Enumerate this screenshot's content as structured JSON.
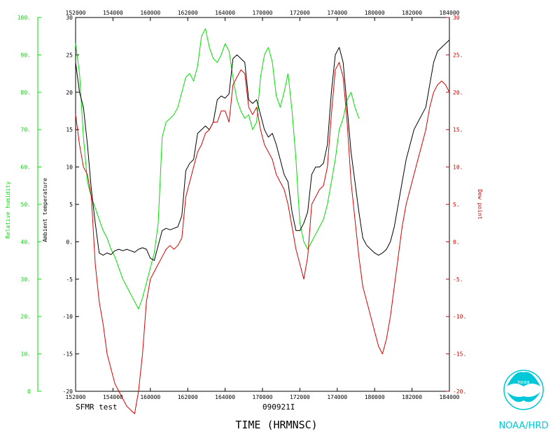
{
  "colors": {
    "humidity": "#00e000",
    "temperature": "#000000",
    "dewpoint": "#d80000",
    "logo": "#00c8d8",
    "frame": "#000000"
  },
  "labels": {
    "left_outer_axis": "Relative humidity",
    "left_inner_axis": "Ambient temperature",
    "right_axis": "Dew point",
    "footer_left": "SFMR test",
    "footer_center": "090921I",
    "x_title": "TIME (HRMNSC)",
    "logo_caption": "NOAA/HRD",
    "logo_badge": "noaa"
  },
  "chart_data": {
    "type": "line",
    "x_tick_labels": [
      "152000",
      "154000",
      "160000",
      "162000",
      "164000",
      "170000",
      "172000",
      "174000",
      "180000",
      "182000",
      "184000"
    ],
    "temperature_axis": {
      "range": [
        -20,
        30
      ],
      "ticks": [
        "30",
        "25",
        "20",
        "15",
        "10",
        "5",
        "0.",
        "-5",
        "-10",
        "-15",
        "-20"
      ]
    },
    "humidity_axis": {
      "range": [
        0,
        100
      ],
      "ticks": [
        "100.",
        "90.",
        "80.",
        "70.",
        "60.",
        "50.",
        "40.",
        "30.",
        "20.",
        "10.",
        "0"
      ]
    },
    "dewpoint_axis": {
      "range": [
        -20,
        30
      ],
      "ticks": [
        "30",
        "25.",
        "20.",
        "15.",
        "10.",
        "5.",
        "0.",
        "-5.",
        "-10.",
        "-15.",
        "-20."
      ]
    },
    "series": [
      {
        "name": "Relative humidity",
        "axis": "humidity",
        "points": [
          [
            0,
            93
          ],
          [
            1,
            85
          ],
          [
            2,
            68
          ],
          [
            3,
            56
          ],
          [
            4,
            52
          ],
          [
            5,
            49
          ],
          [
            6,
            46
          ],
          [
            7,
            43
          ],
          [
            8,
            41
          ],
          [
            9,
            38
          ],
          [
            10,
            36
          ],
          [
            11,
            33
          ],
          [
            12,
            30
          ],
          [
            13,
            28
          ],
          [
            14,
            26
          ],
          [
            15,
            24
          ],
          [
            16,
            22
          ],
          [
            17,
            25
          ],
          [
            18,
            29
          ],
          [
            19,
            33
          ],
          [
            20,
            37
          ],
          [
            21,
            45
          ],
          [
            22,
            68
          ],
          [
            23,
            72
          ],
          [
            24,
            73
          ],
          [
            25,
            74
          ],
          [
            26,
            76
          ],
          [
            27,
            80
          ],
          [
            28,
            84
          ],
          [
            29,
            85
          ],
          [
            30,
            83
          ],
          [
            31,
            87
          ],
          [
            32,
            95
          ],
          [
            33,
            97
          ],
          [
            34,
            92
          ],
          [
            35,
            89
          ],
          [
            36,
            88
          ],
          [
            37,
            90
          ],
          [
            38,
            93
          ],
          [
            39,
            91
          ],
          [
            40,
            84
          ],
          [
            41,
            78
          ],
          [
            42,
            75
          ],
          [
            43,
            73
          ],
          [
            44,
            74
          ],
          [
            45,
            70
          ],
          [
            46,
            72
          ],
          [
            47,
            84
          ],
          [
            48,
            90
          ],
          [
            49,
            92
          ],
          [
            50,
            88
          ],
          [
            51,
            79
          ],
          [
            52,
            76
          ],
          [
            53,
            80
          ],
          [
            54,
            85
          ],
          [
            55,
            75
          ],
          [
            56,
            62
          ],
          [
            57,
            45
          ],
          [
            58,
            40
          ],
          [
            59,
            38
          ],
          [
            60,
            40
          ],
          [
            61,
            42
          ],
          [
            62,
            44
          ],
          [
            63,
            46
          ],
          [
            64,
            50
          ],
          [
            65,
            56
          ],
          [
            66,
            62
          ],
          [
            67,
            70
          ],
          [
            68,
            73
          ],
          [
            69,
            78
          ],
          [
            70,
            80
          ],
          [
            71,
            76
          ],
          [
            72,
            73
          ]
        ]
      },
      {
        "name": "Ambient temperature",
        "axis": "temperature",
        "points": [
          [
            0,
            24
          ],
          [
            1,
            20
          ],
          [
            2,
            18
          ],
          [
            3,
            13
          ],
          [
            4,
            7
          ],
          [
            5,
            2.5
          ],
          [
            6,
            -1.5
          ],
          [
            7,
            -1.8
          ],
          [
            8,
            -1.5
          ],
          [
            9,
            -1.7
          ],
          [
            10,
            -1.2
          ],
          [
            11,
            -1.0
          ],
          [
            12,
            -1.2
          ],
          [
            13,
            -1.0
          ],
          [
            14,
            -1.2
          ],
          [
            15,
            -1.4
          ],
          [
            16,
            -1.0
          ],
          [
            17,
            -0.8
          ],
          [
            18,
            -1.0
          ],
          [
            19,
            -2.2
          ],
          [
            20,
            -2.5
          ],
          [
            21,
            -0.5
          ],
          [
            22,
            1.5
          ],
          [
            23,
            1.8
          ],
          [
            24,
            1.6
          ],
          [
            25,
            1.8
          ],
          [
            26,
            2.0
          ],
          [
            27,
            3.5
          ],
          [
            28,
            9.5
          ],
          [
            29,
            10.5
          ],
          [
            30,
            11
          ],
          [
            31,
            14.5
          ],
          [
            32,
            15
          ],
          [
            33,
            15.5
          ],
          [
            34,
            15
          ],
          [
            35,
            16
          ],
          [
            36,
            19
          ],
          [
            37,
            19.5
          ],
          [
            38,
            19.2
          ],
          [
            39,
            19.8
          ],
          [
            40,
            24.5
          ],
          [
            41,
            25
          ],
          [
            42,
            24.5
          ],
          [
            43,
            24
          ],
          [
            44,
            19
          ],
          [
            45,
            18.5
          ],
          [
            46,
            19
          ],
          [
            47,
            17
          ],
          [
            48,
            15
          ],
          [
            49,
            14
          ],
          [
            50,
            14.5
          ],
          [
            51,
            13
          ],
          [
            52,
            11
          ],
          [
            53,
            9
          ],
          [
            54,
            8
          ],
          [
            55,
            4
          ],
          [
            56,
            1.5
          ],
          [
            57,
            1.5
          ],
          [
            58,
            2.5
          ],
          [
            59,
            4
          ],
          [
            60,
            9
          ],
          [
            61,
            10
          ],
          [
            62,
            10
          ],
          [
            63,
            10.5
          ],
          [
            64,
            13
          ],
          [
            65,
            20
          ],
          [
            66,
            25
          ],
          [
            67,
            26
          ],
          [
            68,
            24
          ],
          [
            69,
            18
          ],
          [
            70,
            12
          ],
          [
            71,
            8
          ],
          [
            72,
            4
          ],
          [
            73,
            0.5
          ],
          [
            74,
            -0.5
          ],
          [
            75,
            -1.0
          ],
          [
            76,
            -1.5
          ],
          [
            77,
            -1.8
          ],
          [
            78,
            -1.5
          ],
          [
            79,
            -1.0
          ],
          [
            80,
            0
          ],
          [
            81,
            2
          ],
          [
            82,
            5
          ],
          [
            83,
            8
          ],
          [
            84,
            11
          ],
          [
            85,
            13
          ],
          [
            86,
            15
          ],
          [
            87,
            16
          ],
          [
            88,
            17
          ],
          [
            89,
            18
          ],
          [
            90,
            21
          ],
          [
            91,
            24
          ],
          [
            92,
            25.5
          ],
          [
            93,
            26
          ],
          [
            94,
            26.5
          ],
          [
            95,
            27
          ]
        ]
      },
      {
        "name": "Dew point",
        "axis": "dewpoint",
        "points": [
          [
            0,
            17
          ],
          [
            1,
            13
          ],
          [
            2,
            10
          ],
          [
            3,
            9
          ],
          [
            4,
            6
          ],
          [
            5,
            -3
          ],
          [
            6,
            -8
          ],
          [
            7,
            -11
          ],
          [
            8,
            -15
          ],
          [
            9,
            -17
          ],
          [
            10,
            -19
          ],
          [
            11,
            -20
          ],
          [
            12,
            -21
          ],
          [
            13,
            -22
          ],
          [
            14,
            -22.5
          ],
          [
            15,
            -23
          ],
          [
            16,
            -20
          ],
          [
            17,
            -15
          ],
          [
            18,
            -8
          ],
          [
            19,
            -5
          ],
          [
            20,
            -4
          ],
          [
            21,
            -3
          ],
          [
            22,
            -2
          ],
          [
            23,
            -1
          ],
          [
            24,
            -0.5
          ],
          [
            25,
            -1
          ],
          [
            26,
            -0.5
          ],
          [
            27,
            0.5
          ],
          [
            28,
            6
          ],
          [
            29,
            8
          ],
          [
            30,
            10
          ],
          [
            31,
            12
          ],
          [
            32,
            13
          ],
          [
            33,
            14.5
          ],
          [
            34,
            15
          ],
          [
            35,
            16
          ],
          [
            36,
            16
          ],
          [
            37,
            17.5
          ],
          [
            38,
            17.5
          ],
          [
            39,
            16
          ],
          [
            40,
            21
          ],
          [
            41,
            22
          ],
          [
            42,
            23
          ],
          [
            43,
            22.5
          ],
          [
            44,
            18
          ],
          [
            45,
            17
          ],
          [
            46,
            18
          ],
          [
            47,
            15
          ],
          [
            48,
            13
          ],
          [
            49,
            12
          ],
          [
            50,
            11
          ],
          [
            51,
            9
          ],
          [
            52,
            8
          ],
          [
            53,
            7
          ],
          [
            54,
            5
          ],
          [
            55,
            2
          ],
          [
            56,
            -1
          ],
          [
            57,
            -3
          ],
          [
            58,
            -5
          ],
          [
            59,
            -2
          ],
          [
            60,
            5
          ],
          [
            61,
            6
          ],
          [
            62,
            7
          ],
          [
            63,
            7.5
          ],
          [
            64,
            10
          ],
          [
            65,
            17
          ],
          [
            66,
            23
          ],
          [
            67,
            24
          ],
          [
            68,
            22
          ],
          [
            69,
            16
          ],
          [
            70,
            8
          ],
          [
            71,
            3
          ],
          [
            72,
            -2
          ],
          [
            73,
            -6
          ],
          [
            74,
            -8
          ],
          [
            75,
            -10
          ],
          [
            76,
            -12
          ],
          [
            77,
            -14
          ],
          [
            78,
            -15
          ],
          [
            79,
            -13
          ],
          [
            80,
            -10
          ],
          [
            81,
            -6
          ],
          [
            82,
            -2
          ],
          [
            83,
            2
          ],
          [
            84,
            5
          ],
          [
            85,
            7
          ],
          [
            86,
            9
          ],
          [
            87,
            11
          ],
          [
            88,
            13
          ],
          [
            89,
            15
          ],
          [
            90,
            18
          ],
          [
            91,
            20
          ],
          [
            92,
            21
          ],
          [
            93,
            21.5
          ],
          [
            94,
            21
          ],
          [
            95,
            20
          ]
        ]
      }
    ]
  }
}
